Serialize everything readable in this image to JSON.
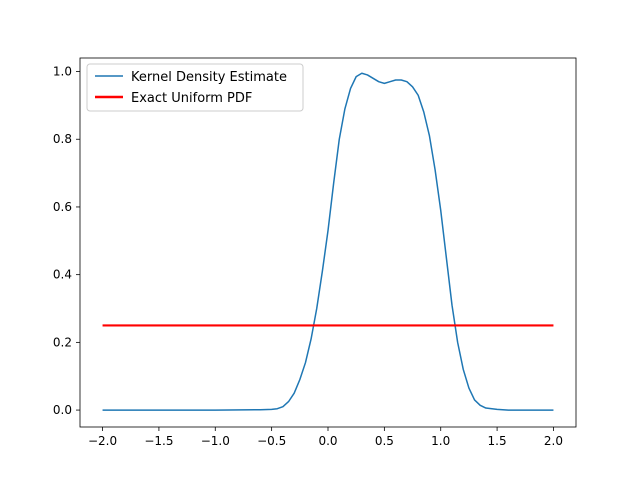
{
  "chart_data": {
    "type": "line",
    "title": "",
    "xlabel": "",
    "ylabel": "",
    "xlim": [
      -2.2,
      2.2
    ],
    "ylim": [
      -0.05,
      1.04
    ],
    "xticks": [
      -2.0,
      -1.5,
      -1.0,
      -0.5,
      0.0,
      0.5,
      1.0,
      1.5,
      2.0
    ],
    "xtick_labels": [
      "−2.0",
      "−1.5",
      "−1.0",
      "−0.5",
      "0.0",
      "0.5",
      "1.0",
      "1.5",
      "2.0"
    ],
    "yticks": [
      0.0,
      0.2,
      0.4,
      0.6,
      0.8,
      1.0
    ],
    "ytick_labels": [
      "0.0",
      "0.2",
      "0.4",
      "0.6",
      "0.8",
      "1.0"
    ],
    "grid": false,
    "legend_position": "top-left",
    "series": [
      {
        "name": "Kernel Density Estimate",
        "color": "#1f77b4",
        "x": [
          -2.0,
          -1.0,
          -0.6,
          -0.5,
          -0.45,
          -0.4,
          -0.35,
          -0.3,
          -0.25,
          -0.2,
          -0.15,
          -0.1,
          -0.05,
          0.0,
          0.05,
          0.1,
          0.15,
          0.2,
          0.25,
          0.3,
          0.35,
          0.4,
          0.45,
          0.5,
          0.55,
          0.6,
          0.65,
          0.7,
          0.75,
          0.8,
          0.85,
          0.9,
          0.95,
          1.0,
          1.05,
          1.1,
          1.15,
          1.2,
          1.25,
          1.3,
          1.35,
          1.4,
          1.5,
          1.6,
          2.0
        ],
        "y": [
          0.0,
          0.0,
          0.001,
          0.002,
          0.004,
          0.01,
          0.025,
          0.05,
          0.09,
          0.14,
          0.21,
          0.3,
          0.41,
          0.53,
          0.67,
          0.8,
          0.89,
          0.95,
          0.985,
          0.995,
          0.99,
          0.98,
          0.97,
          0.965,
          0.97,
          0.975,
          0.975,
          0.97,
          0.955,
          0.93,
          0.88,
          0.81,
          0.71,
          0.59,
          0.45,
          0.31,
          0.2,
          0.12,
          0.065,
          0.03,
          0.014,
          0.006,
          0.002,
          0.0,
          0.0
        ]
      },
      {
        "name": "Exact Uniform PDF",
        "color": "#ff0000",
        "x": [
          -2.0,
          2.0
        ],
        "y": [
          0.25,
          0.25
        ]
      }
    ]
  }
}
